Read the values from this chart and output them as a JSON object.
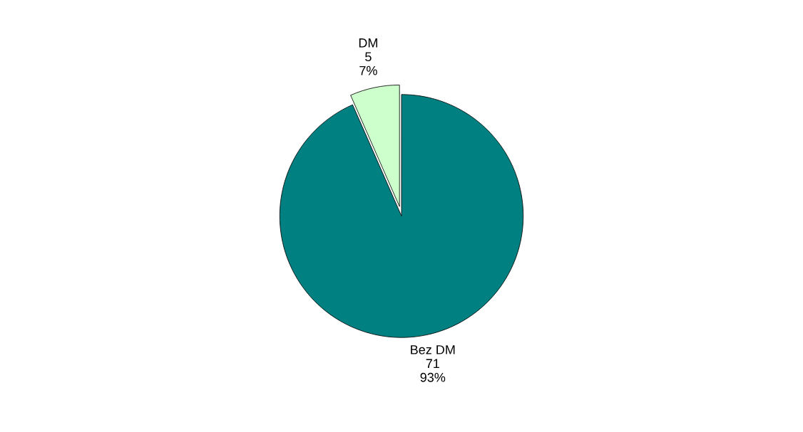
{
  "chart_data": {
    "type": "pie",
    "categories": [
      "DM",
      "Bez DM"
    ],
    "values": [
      5,
      71
    ],
    "value_labels": [
      "5\n7%",
      "71\n93%"
    ],
    "colors": [
      "#ccffcc",
      "#008080"
    ]
  }
}
